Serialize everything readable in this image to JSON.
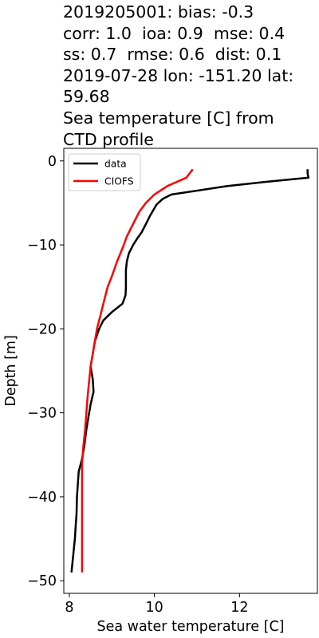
{
  "title_lines": [
    "2019205001: bias: -0.3",
    "corr: 1.0  ioa: 0.9  mse: 0.4",
    "ss: 0.7  rmse: 0.6  dist: 0.1",
    "2019-07-28 lon: -151.20 lat:",
    "59.68",
    "Sea temperature [C] from",
    "CTD profile"
  ],
  "chart_data": {
    "type": "line",
    "title": "2019205001: bias: -0.3 corr: 1.0  ioa: 0.9  mse: 0.4 ss: 0.7  rmse: 0.6  dist: 0.1 2019-07-28 lon: -151.20 lat: 59.68 Sea temperature [C] from CTD profile",
    "xlabel": "Sea water temperature [C]",
    "ylabel": "Depth [m]",
    "xlim": [
      7.87,
      13.83
    ],
    "ylim": [
      -51.5,
      1.5
    ],
    "xticks": [
      8,
      10,
      12
    ],
    "xtick_labels": [
      "8",
      "10",
      "12"
    ],
    "yticks": [
      0,
      -10,
      -20,
      -30,
      -40,
      -50
    ],
    "ytick_labels": [
      "0",
      "−10",
      "−20",
      "−30",
      "−40",
      "−50"
    ],
    "grid": false,
    "legend_position": "top-left",
    "series": [
      {
        "name": "data",
        "color": "#000000",
        "points": [
          [
            13.6,
            -1.0
          ],
          [
            13.6,
            -1.5
          ],
          [
            13.62,
            -2.0
          ],
          [
            12.6,
            -2.5
          ],
          [
            11.7,
            -3.0
          ],
          [
            10.4,
            -4.0
          ],
          [
            10.2,
            -4.5
          ],
          [
            10.05,
            -5.2
          ],
          [
            9.9,
            -6.5
          ],
          [
            9.8,
            -7.5
          ],
          [
            9.7,
            -8.5
          ],
          [
            9.6,
            -9.2
          ],
          [
            9.5,
            -10.0
          ],
          [
            9.4,
            -11.0
          ],
          [
            9.35,
            -12.0
          ],
          [
            9.33,
            -13.0
          ],
          [
            9.33,
            -14.0
          ],
          [
            9.33,
            -15.0
          ],
          [
            9.32,
            -16.0
          ],
          [
            9.25,
            -17.0
          ],
          [
            9.0,
            -18.0
          ],
          [
            8.8,
            -19.0
          ],
          [
            8.7,
            -20.0
          ],
          [
            8.6,
            -21.5
          ],
          [
            8.55,
            -23.0
          ],
          [
            8.5,
            -24.5
          ],
          [
            8.55,
            -26.0
          ],
          [
            8.57,
            -27.5
          ],
          [
            8.5,
            -29.0
          ],
          [
            8.45,
            -30.5
          ],
          [
            8.4,
            -32.0
          ],
          [
            8.35,
            -34.0
          ],
          [
            8.3,
            -35.5
          ],
          [
            8.22,
            -37.0
          ],
          [
            8.2,
            -38.5
          ],
          [
            8.18,
            -40.0
          ],
          [
            8.17,
            -42.0
          ],
          [
            8.15,
            -43.5
          ],
          [
            8.13,
            -45.0
          ],
          [
            8.1,
            -46.5
          ],
          [
            8.07,
            -48.0
          ],
          [
            8.05,
            -49.0
          ]
        ]
      },
      {
        "name": "CIOFS",
        "color": "#ff0000",
        "points": [
          [
            10.9,
            -1.0
          ],
          [
            10.75,
            -2.0
          ],
          [
            10.3,
            -3.0
          ],
          [
            10.0,
            -4.0
          ],
          [
            9.8,
            -5.0
          ],
          [
            9.65,
            -6.0
          ],
          [
            9.55,
            -7.0
          ],
          [
            9.45,
            -8.0
          ],
          [
            9.35,
            -9.0
          ],
          [
            9.28,
            -10.0
          ],
          [
            9.2,
            -11.0
          ],
          [
            9.12,
            -12.0
          ],
          [
            9.05,
            -13.0
          ],
          [
            8.98,
            -14.0
          ],
          [
            8.9,
            -15.0
          ],
          [
            8.85,
            -16.0
          ],
          [
            8.8,
            -17.0
          ],
          [
            8.75,
            -18.0
          ],
          [
            8.7,
            -19.0
          ],
          [
            8.65,
            -20.0
          ],
          [
            8.6,
            -21.5
          ],
          [
            8.55,
            -23.0
          ],
          [
            8.5,
            -24.5
          ],
          [
            8.47,
            -26.0
          ],
          [
            8.43,
            -28.0
          ],
          [
            8.4,
            -30.0
          ],
          [
            8.37,
            -32.0
          ],
          [
            8.33,
            -34.0
          ],
          [
            8.3,
            -36.0
          ],
          [
            8.3,
            -38.0
          ],
          [
            8.3,
            -40.0
          ],
          [
            8.3,
            -42.0
          ],
          [
            8.3,
            -44.0
          ],
          [
            8.3,
            -46.0
          ],
          [
            8.3,
            -48.0
          ],
          [
            8.3,
            -49.0
          ]
        ]
      }
    ]
  }
}
